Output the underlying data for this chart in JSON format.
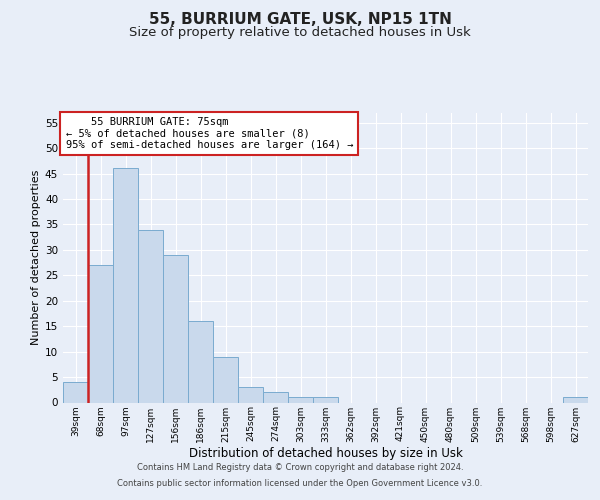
{
  "title1": "55, BURRIUM GATE, USK, NP15 1TN",
  "title2": "Size of property relative to detached houses in Usk",
  "xlabel": "Distribution of detached houses by size in Usk",
  "ylabel": "Number of detached properties",
  "categories": [
    "39sqm",
    "68sqm",
    "97sqm",
    "127sqm",
    "156sqm",
    "186sqm",
    "215sqm",
    "245sqm",
    "274sqm",
    "303sqm",
    "333sqm",
    "362sqm",
    "392sqm",
    "421sqm",
    "450sqm",
    "480sqm",
    "509sqm",
    "539sqm",
    "568sqm",
    "598sqm",
    "627sqm"
  ],
  "values": [
    4,
    27,
    46,
    34,
    29,
    16,
    9,
    3,
    2,
    1,
    1,
    0,
    0,
    0,
    0,
    0,
    0,
    0,
    0,
    0,
    1
  ],
  "bar_color": "#c9d9ec",
  "bar_edge_color": "#7aabcf",
  "highlight_bar_edge_color": "#cc2222",
  "annotation_box_text": "    55 BURRIUM GATE: 75sqm\n← 5% of detached houses are smaller (8)\n95% of semi-detached houses are larger (164) →",
  "footer_line1": "Contains HM Land Registry data © Crown copyright and database right 2024.",
  "footer_line2": "Contains public sector information licensed under the Open Government Licence v3.0.",
  "ylim": [
    0,
    57
  ],
  "yticks": [
    0,
    5,
    10,
    15,
    20,
    25,
    30,
    35,
    40,
    45,
    50,
    55
  ],
  "bg_color": "#e8eef8",
  "plot_bg_color": "#e8eef8",
  "grid_color": "#ffffff",
  "title1_fontsize": 11,
  "title2_fontsize": 9.5
}
